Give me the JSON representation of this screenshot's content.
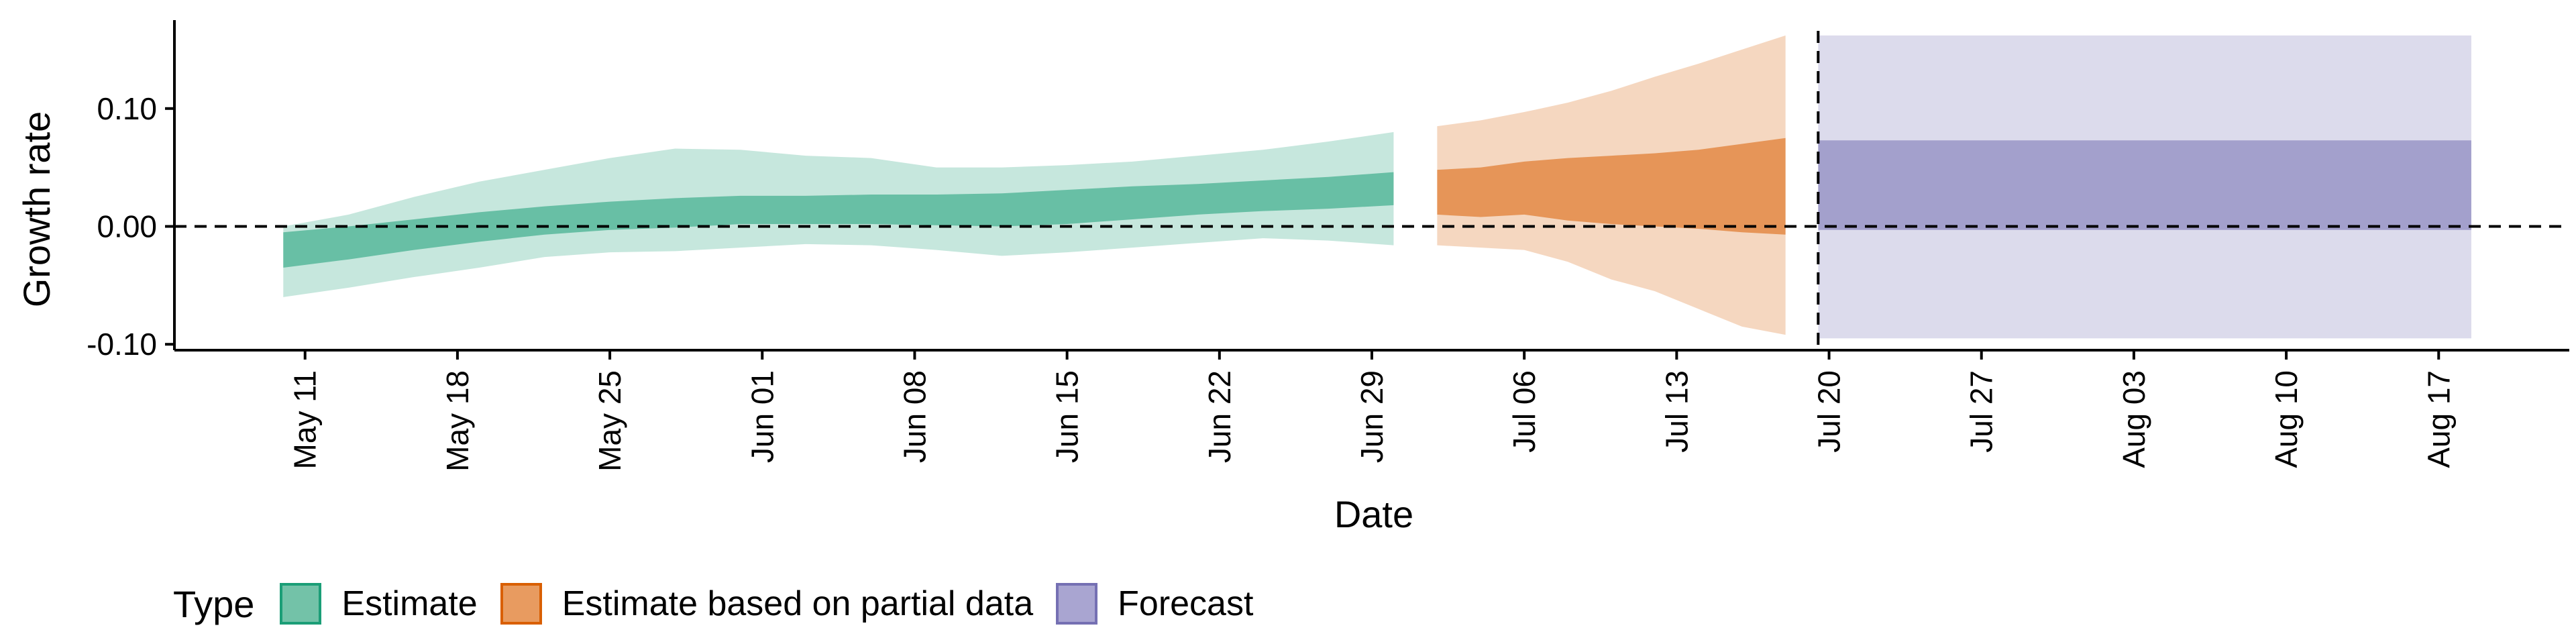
{
  "chart_data": {
    "type": "area",
    "title": "",
    "xlabel": "Date",
    "ylabel": "Growth rate",
    "x_range": [
      "2020-05-05",
      "2020-08-23"
    ],
    "ylim": [
      -0.105,
      0.175
    ],
    "y_ticks": [
      -0.1,
      0.0,
      0.1
    ],
    "y_tick_labels": [
      "-0.10",
      "0.00",
      "0.10"
    ],
    "x_ticks": [
      "2020-05-11",
      "2020-05-18",
      "2020-05-25",
      "2020-06-01",
      "2020-06-08",
      "2020-06-15",
      "2020-06-22",
      "2020-06-29",
      "2020-07-06",
      "2020-07-13",
      "2020-07-20",
      "2020-07-27",
      "2020-08-03",
      "2020-08-10",
      "2020-08-17"
    ],
    "x_tick_labels": [
      "May 11",
      "May 18",
      "May 25",
      "Jun 01",
      "Jun 08",
      "Jun 15",
      "Jun 22",
      "Jun 29",
      "Jul 06",
      "Jul 13",
      "Jul 20",
      "Jul 27",
      "Aug 03",
      "Aug 10",
      "Aug 17"
    ],
    "reference_lines": {
      "horizontal_y": 0.0,
      "vertical_date": "2020-07-19"
    },
    "grid": false,
    "legend": {
      "position": "bottom-left",
      "title": "Type",
      "entries": [
        {
          "label": "Estimate",
          "fill": "#73c2a8",
          "border": "#1b9e77"
        },
        {
          "label": "Estimate based on partial data",
          "fill": "#e89b60",
          "border": "#d95f02"
        },
        {
          "label": "Forecast",
          "fill": "#a9a5d1",
          "border": "#7570b3"
        }
      ]
    },
    "series": [
      {
        "name": "Estimate",
        "color": "#1b9e77",
        "x": [
          "2020-05-10",
          "2020-05-13",
          "2020-05-16",
          "2020-05-19",
          "2020-05-22",
          "2020-05-25",
          "2020-05-28",
          "2020-05-31",
          "2020-06-03",
          "2020-06-06",
          "2020-06-09",
          "2020-06-12",
          "2020-06-15",
          "2020-06-18",
          "2020-06-21",
          "2020-06-24",
          "2020-06-27",
          "2020-06-30"
        ],
        "lower_90": [
          -0.06,
          -0.052,
          -0.043,
          -0.035,
          -0.026,
          -0.022,
          -0.021,
          -0.018,
          -0.015,
          -0.016,
          -0.02,
          -0.025,
          -0.022,
          -0.018,
          -0.014,
          -0.01,
          -0.012,
          -0.016
        ],
        "upper_90": [
          0.0,
          0.01,
          0.025,
          0.038,
          0.048,
          0.058,
          0.066,
          0.065,
          0.06,
          0.058,
          0.05,
          0.05,
          0.052,
          0.055,
          0.06,
          0.065,
          0.072,
          0.08
        ],
        "lower_50": [
          -0.035,
          -0.028,
          -0.02,
          -0.013,
          -0.007,
          -0.003,
          -0.001,
          0.002,
          0.002,
          0.002,
          0.001,
          0.0,
          0.002,
          0.006,
          0.01,
          0.013,
          0.015,
          0.018
        ],
        "upper_50": [
          -0.005,
          0.0,
          0.006,
          0.012,
          0.017,
          0.021,
          0.024,
          0.026,
          0.026,
          0.027,
          0.027,
          0.028,
          0.031,
          0.034,
          0.036,
          0.039,
          0.042,
          0.046
        ]
      },
      {
        "name": "Estimate based on partial data",
        "color": "#d95f02",
        "x": [
          "2020-07-02",
          "2020-07-04",
          "2020-07-06",
          "2020-07-08",
          "2020-07-10",
          "2020-07-12",
          "2020-07-14",
          "2020-07-16",
          "2020-07-18"
        ],
        "lower_90": [
          -0.016,
          -0.018,
          -0.02,
          -0.03,
          -0.045,
          -0.055,
          -0.07,
          -0.085,
          -0.092
        ],
        "upper_90": [
          0.085,
          0.09,
          0.097,
          0.105,
          0.115,
          0.127,
          0.138,
          0.15,
          0.162
        ],
        "lower_50": [
          0.01,
          0.008,
          0.01,
          0.005,
          0.002,
          0.0,
          -0.002,
          -0.005,
          -0.007
        ],
        "upper_50": [
          0.048,
          0.05,
          0.055,
          0.058,
          0.06,
          0.062,
          0.065,
          0.07,
          0.075
        ]
      },
      {
        "name": "Forecast",
        "color": "#7570b3",
        "x": [
          "2020-07-20",
          "2020-08-18"
        ],
        "lower_90": [
          -0.095,
          -0.095
        ],
        "upper_90": [
          0.162,
          0.162
        ],
        "lower_50": [
          -0.003,
          -0.003
        ],
        "upper_50": [
          0.073,
          0.073
        ]
      }
    ]
  }
}
